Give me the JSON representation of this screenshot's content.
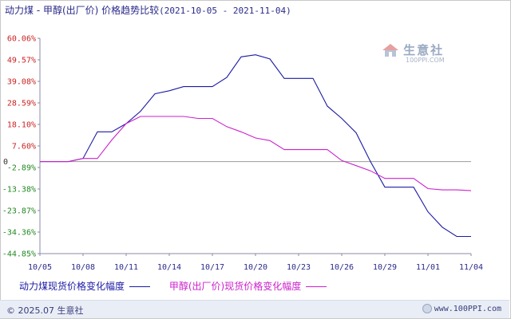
{
  "header": {
    "title": "动力煤 - 甲醇(出厂价) 价格趋势比较",
    "range": "(2021-10-05 - 2021-11-04)"
  },
  "watermark": {
    "name": "生意社",
    "url": "100PPI.COM"
  },
  "footer": {
    "copyright": "© 2025.07 生意社",
    "site": "www.100PPI.com"
  },
  "colors": {
    "series1": "#1a1aa6",
    "series2": "#cc22cc",
    "pos_tick": "#cc2222",
    "neg_tick": "#228822",
    "axis": "#2a2a8a"
  },
  "chart_data": {
    "type": "line",
    "title": "动力煤 - 甲醇(出厂价) 价格趋势比较",
    "xlabel": "",
    "ylabel": "",
    "ylim": [
      -44.85,
      60.06
    ],
    "yticks": [
      "60.06%",
      "49.57%",
      "39.08%",
      "28.59%",
      "18.10%",
      "7.60%",
      "-2.89%",
      "-13.38%",
      "-23.87%",
      "-34.36%",
      "-44.85%"
    ],
    "ytick_values": [
      60.06,
      49.57,
      39.08,
      28.59,
      18.1,
      7.6,
      -2.89,
      -13.38,
      -23.87,
      -34.36,
      -44.85
    ],
    "categories": [
      "10/05",
      "10/06",
      "10/07",
      "10/08",
      "10/09",
      "10/10",
      "10/11",
      "10/12",
      "10/13",
      "10/14",
      "10/15",
      "10/16",
      "10/17",
      "10/18",
      "10/19",
      "10/20",
      "10/21",
      "10/22",
      "10/23",
      "10/24",
      "10/25",
      "10/26",
      "10/27",
      "10/28",
      "10/29",
      "10/30",
      "10/31",
      "11/01",
      "11/02",
      "11/03",
      "11/04"
    ],
    "xtick_labels": [
      "10/05",
      "10/08",
      "10/11",
      "10/14",
      "10/17",
      "10/20",
      "10/23",
      "10/26",
      "10/29",
      "11/01",
      "11/04"
    ],
    "legend_placement": "bottom",
    "grid": false,
    "series": [
      {
        "name": "动力煤现货价格变化幅度",
        "values": [
          0,
          0,
          0,
          1.5,
          14.5,
          14.5,
          18.5,
          24.5,
          33,
          34.5,
          36.5,
          36.5,
          36.5,
          41,
          51,
          52,
          50,
          40.5,
          40.5,
          40.5,
          27,
          21,
          14,
          0,
          -12.5,
          -12.5,
          -12.5,
          -24.5,
          -32,
          -36.5,
          -36.5
        ]
      },
      {
        "name": "甲醇(出厂价)现货价格变化幅度",
        "values": [
          0,
          0,
          0,
          1.5,
          1.5,
          10.5,
          18.5,
          22,
          22,
          22,
          22,
          21,
          21,
          17,
          14.5,
          11.5,
          10.2,
          5.8,
          5.8,
          5.8,
          5.8,
          0.5,
          -2,
          -4.5,
          -8.2,
          -8.2,
          -8.2,
          -13.2,
          -13.8,
          -13.8,
          -14.2
        ]
      }
    ]
  }
}
